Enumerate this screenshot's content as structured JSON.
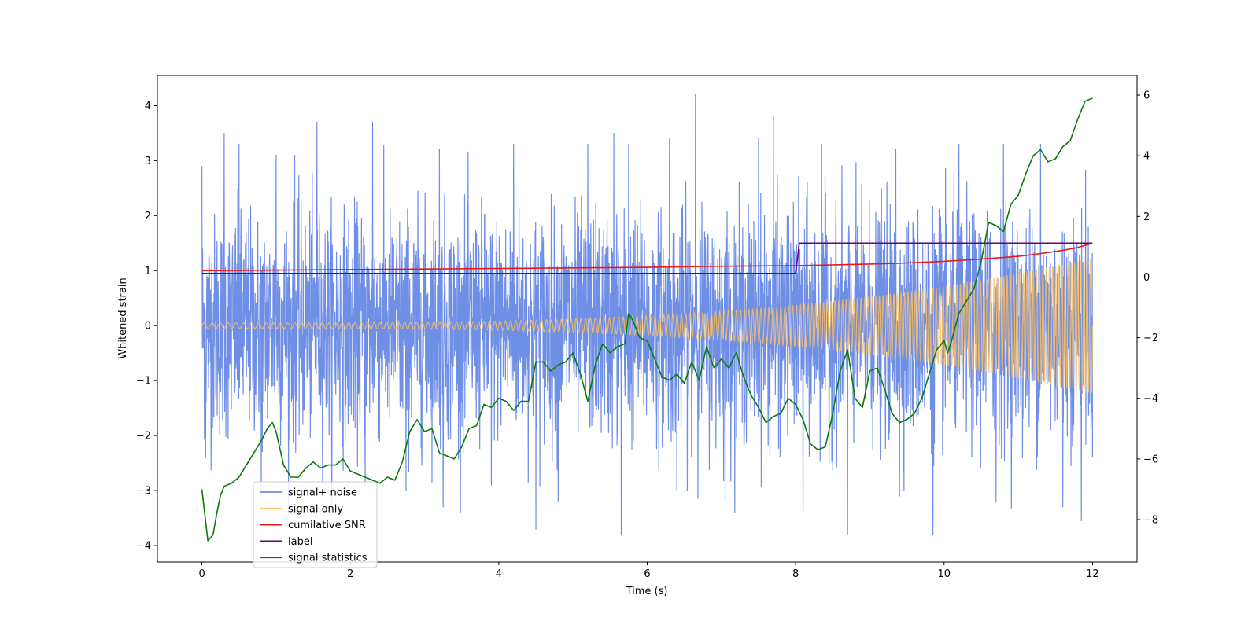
{
  "chart_data": {
    "type": "line",
    "title": "",
    "xlabel": "Time (s)",
    "ylabel": "Whitened strain",
    "y2label": "",
    "xlim": [
      -0.6,
      12.6
    ],
    "ylim": [
      -4.3,
      4.55
    ],
    "y2lim": [
      -9.4,
      6.65
    ],
    "xticks": [
      0,
      2,
      4,
      6,
      8,
      10,
      12
    ],
    "yticks": [
      -4,
      -3,
      -2,
      -1,
      0,
      1,
      2,
      3,
      4
    ],
    "y2ticks": [
      -8,
      -6,
      -4,
      -2,
      0,
      2,
      4,
      6
    ],
    "grid": false,
    "legend_position": "lower-left",
    "legend": [
      {
        "label": "signal+ noise",
        "color": "#6f8ee6"
      },
      {
        "label": "signal only",
        "color": "#ffbf5a"
      },
      {
        "label": "cumilative SNR",
        "color": "#e8181a"
      },
      {
        "label": "label",
        "color": "#6a007a"
      },
      {
        "label": "signal statistics",
        "color": "#0a7a0a"
      }
    ],
    "series": [
      {
        "name": "signal+ noise",
        "axis": "left",
        "color": "#6f8ee6",
        "x_range": [
          0,
          12
        ],
        "envelope_note": "dense noisy trace",
        "upper_peaks": [
          [
            0.0,
            2.9
          ],
          [
            0.3,
            3.5
          ],
          [
            0.5,
            3.3
          ],
          [
            1.0,
            3.1
          ],
          [
            1.25,
            3.1
          ],
          [
            1.55,
            3.7
          ],
          [
            2.3,
            3.7
          ],
          [
            3.2,
            3.2
          ],
          [
            4.2,
            3.3
          ],
          [
            5.2,
            3.3
          ],
          [
            5.55,
            3.5
          ],
          [
            5.75,
            3.3
          ],
          [
            6.3,
            3.4
          ],
          [
            6.65,
            4.2
          ],
          [
            7.5,
            3.4
          ],
          [
            7.7,
            3.8
          ],
          [
            8.35,
            3.3
          ],
          [
            9.35,
            3.2
          ],
          [
            10.2,
            3.3
          ],
          [
            10.8,
            3.3
          ],
          [
            11.3,
            3.3
          ],
          [
            11.6,
            3.2
          ],
          [
            12.0,
            2.5
          ]
        ],
        "lower_peaks": [
          [
            0.05,
            -2.4
          ],
          [
            0.8,
            -3.1
          ],
          [
            2.2,
            -2.9
          ],
          [
            2.75,
            -3.0
          ],
          [
            3.25,
            -3.3
          ],
          [
            3.9,
            -2.9
          ],
          [
            4.5,
            -3.7
          ],
          [
            4.8,
            -3.2
          ],
          [
            5.65,
            -3.8
          ],
          [
            6.4,
            -3.0
          ],
          [
            7.05,
            -3.2
          ],
          [
            8.1,
            -3.4
          ],
          [
            8.7,
            -3.8
          ],
          [
            9.4,
            -3.1
          ],
          [
            9.85,
            -3.8
          ],
          [
            10.7,
            -3.2
          ],
          [
            11.6,
            -3.3
          ],
          [
            11.85,
            -3.55
          ],
          [
            12.0,
            -2.4
          ]
        ]
      },
      {
        "name": "signal only",
        "axis": "left",
        "color": "#ffbf5a",
        "note": "chirp oscillation with growing amplitude",
        "amplitude_start": 0.05,
        "amplitude_end": 1.25
      },
      {
        "name": "cumilative SNR",
        "axis": "left",
        "color": "#e8181a",
        "x": [
          0,
          1,
          2,
          3,
          4,
          5,
          6,
          7,
          8,
          9,
          9.5,
          10,
          10.5,
          11,
          11.3,
          11.6,
          11.8,
          12
        ],
        "y": [
          1.0,
          1.01,
          1.02,
          1.03,
          1.04,
          1.05,
          1.06,
          1.08,
          1.09,
          1.12,
          1.14,
          1.17,
          1.21,
          1.26,
          1.31,
          1.37,
          1.42,
          1.5
        ]
      },
      {
        "name": "label",
        "axis": "left",
        "color": "#6a007a",
        "x": [
          0,
          8.0,
          8.05,
          12
        ],
        "y": [
          0.95,
          0.95,
          1.5,
          1.5
        ]
      },
      {
        "name": "signal statistics",
        "axis": "right",
        "color": "#0a7a0a",
        "x": [
          0,
          0.08,
          0.15,
          0.2,
          0.25,
          0.3,
          0.4,
          0.5,
          0.6,
          0.7,
          0.8,
          0.88,
          0.95,
          1.0,
          1.1,
          1.2,
          1.3,
          1.4,
          1.5,
          1.6,
          1.7,
          1.8,
          1.9,
          2.0,
          2.1,
          2.2,
          2.3,
          2.4,
          2.5,
          2.6,
          2.7,
          2.8,
          2.9,
          3.0,
          3.1,
          3.2,
          3.3,
          3.4,
          3.5,
          3.6,
          3.7,
          3.8,
          3.9,
          4.0,
          4.1,
          4.2,
          4.3,
          4.4,
          4.5,
          4.6,
          4.7,
          4.8,
          4.9,
          5.0,
          5.1,
          5.2,
          5.3,
          5.4,
          5.5,
          5.6,
          5.7,
          5.75,
          5.8,
          5.9,
          6.0,
          6.1,
          6.2,
          6.3,
          6.4,
          6.5,
          6.6,
          6.7,
          6.8,
          6.9,
          7.0,
          7.1,
          7.2,
          7.3,
          7.4,
          7.5,
          7.6,
          7.7,
          7.8,
          7.9,
          8.0,
          8.1,
          8.2,
          8.3,
          8.4,
          8.5,
          8.6,
          8.7,
          8.8,
          8.9,
          9.0,
          9.1,
          9.2,
          9.3,
          9.4,
          9.5,
          9.6,
          9.7,
          9.8,
          9.9,
          10.0,
          10.05,
          10.1,
          10.2,
          10.3,
          10.4,
          10.5,
          10.6,
          10.7,
          10.8,
          10.9,
          11.0,
          11.1,
          11.2,
          11.3,
          11.4,
          11.5,
          11.6,
          11.7,
          11.8,
          11.9,
          12.0
        ],
        "y": [
          -7.0,
          -8.7,
          -8.5,
          -7.8,
          -7.2,
          -6.9,
          -6.8,
          -6.6,
          -6.2,
          -5.8,
          -5.4,
          -5.0,
          -4.8,
          -5.1,
          -6.2,
          -6.6,
          -6.6,
          -6.3,
          -6.1,
          -6.3,
          -6.2,
          -6.2,
          -6.0,
          -6.4,
          -6.5,
          -6.6,
          -6.7,
          -6.8,
          -6.6,
          -6.7,
          -6.1,
          -5.1,
          -4.7,
          -5.1,
          -5.0,
          -5.8,
          -5.9,
          -6.0,
          -5.6,
          -5.0,
          -4.9,
          -4.2,
          -4.3,
          -4.0,
          -4.1,
          -4.4,
          -4.1,
          -4.1,
          -2.8,
          -2.8,
          -3.1,
          -2.9,
          -2.8,
          -2.5,
          -3.2,
          -4.1,
          -2.9,
          -2.2,
          -2.5,
          -2.3,
          -2.2,
          -1.2,
          -1.4,
          -2.0,
          -2.1,
          -2.7,
          -3.3,
          -3.4,
          -3.2,
          -3.5,
          -2.8,
          -3.4,
          -2.3,
          -3.0,
          -2.7,
          -3.0,
          -2.5,
          -3.3,
          -3.9,
          -4.3,
          -4.8,
          -4.6,
          -4.5,
          -4.0,
          -4.2,
          -4.7,
          -5.5,
          -5.7,
          -5.6,
          -4.5,
          -3.1,
          -2.4,
          -4.0,
          -4.3,
          -3.1,
          -3.0,
          -3.7,
          -4.5,
          -4.8,
          -4.7,
          -4.5,
          -4.0,
          -3.2,
          -2.4,
          -2.1,
          -2.5,
          -2.1,
          -1.2,
          -0.8,
          -0.4,
          0.5,
          1.8,
          1.7,
          1.5,
          2.4,
          2.7,
          3.4,
          4.0,
          4.2,
          3.8,
          3.9,
          4.3,
          4.5,
          5.2,
          5.8,
          5.9
        ]
      }
    ]
  }
}
